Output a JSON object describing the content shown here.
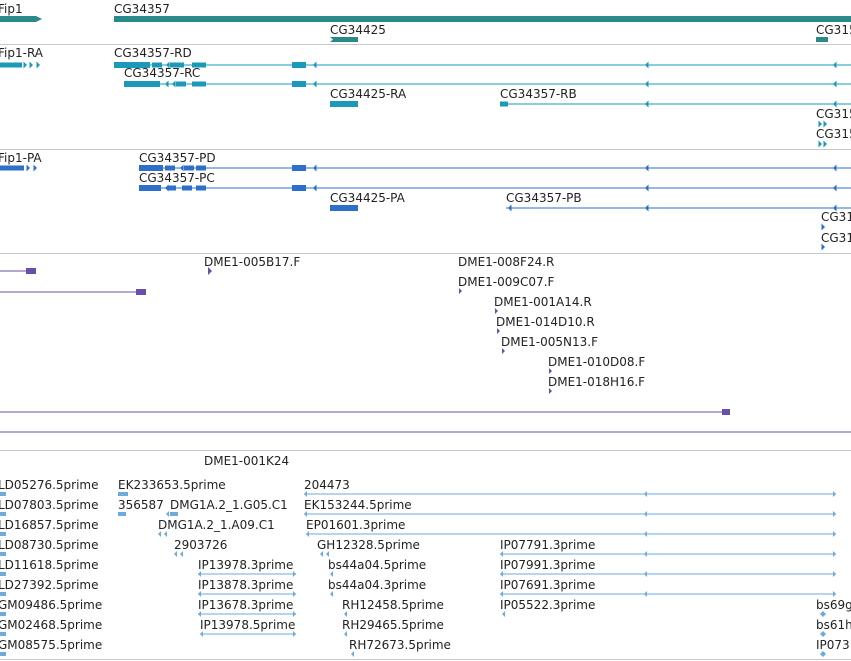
{
  "colors": {
    "gene": "#2a8a8a",
    "transcript_a": "#1a9ab8",
    "transcript_b": "#2e6fc9",
    "clone": "#6a4fa8",
    "est": "#6faadc",
    "separator": "#c8c8c8"
  },
  "tracks": {
    "genes": {
      "labels": {
        "fip1": "Fip1",
        "cg34357": "CG34357",
        "cg34425": "CG34425",
        "cg315": "CG315"
      }
    },
    "transcripts_a": {
      "labels": {
        "fip1_ra": "Fip1-RA",
        "cg34357_rd": "CG34357-RD",
        "cg34357_rc": "CG34357-RC",
        "cg34425_ra": "CG34425-RA",
        "cg34357_rb": "CG34357-RB",
        "cg315_a": "CG315",
        "cg315_b": "CG315"
      }
    },
    "transcripts_b": {
      "labels": {
        "fip1_pa": "Fip1-PA",
        "cg34357_pd": "CG34357-PD",
        "cg34357_pc": "CG34357-PC",
        "cg34425_pa": "CG34425-PA",
        "cg34357_pb": "CG34357-PB",
        "cg31_a": "CG31",
        "cg31_b": "CG31"
      }
    },
    "clones": {
      "labels": {
        "dme1_005b17": "DME1-005B17.F",
        "dme1_008f24": "DME1-008F24.R",
        "dme1_009c07": "DME1-009C07.F",
        "dme1_001a14": "DME1-001A14.R",
        "dme1_014d10": "DME1-014D10.R",
        "dme1_005n13": "DME1-005N13.F",
        "dme1_010d08": "DME1-010D08.F",
        "dme1_018h16": "DME1-018H16.F"
      }
    },
    "clones2": {
      "labels": {
        "dme1_001k24": "DME1-001K24"
      }
    },
    "ests": {
      "labels": {
        "ld05276": "LD05276.5prime",
        "ld07803": "LD07803.5prime",
        "ld16857": "LD16857.5prime",
        "ld08730": "LD08730.5prime",
        "ld11618": "LD11618.5prime",
        "ld27392": "LD27392.5prime",
        "gm09486": "GM09486.5prime",
        "gm02468": "GM02468.5prime",
        "gm08575": "GM08575.5prime",
        "ek233653": "EK233653.5prime",
        "n356587": "356587",
        "dmg1a2_g05": "DMG1A.2_1.G05.C1",
        "dmg1a2_a09": "DMG1A.2_1.A09.C1",
        "n2903726": "2903726",
        "ip13978_3": "IP13978.3prime",
        "ip13878_3": "IP13878.3prime",
        "ip13678_3": "IP13678.3prime",
        "ip13978_5": "IP13978.5prime",
        "n204473": "204473",
        "ek153244": "EK153244.5prime",
        "ep01601": "EP01601.3prime",
        "gh12328": "GH12328.5prime",
        "bs44a04_5": "bs44a04.5prime",
        "bs44a04_3": "bs44a04.3prime",
        "rh12458": "RH12458.5prime",
        "rh29465": "RH29465.5prime",
        "rh72673": "RH72673.5prime",
        "ip07791": "IP07791.3prime",
        "ip07991": "IP07991.3prime",
        "ip07691": "IP07691.3prime",
        "ip05522": "IP05522.3prime",
        "bs69": "bs69g",
        "bs61": "bs61h",
        "ip073": "IP073"
      }
    }
  }
}
